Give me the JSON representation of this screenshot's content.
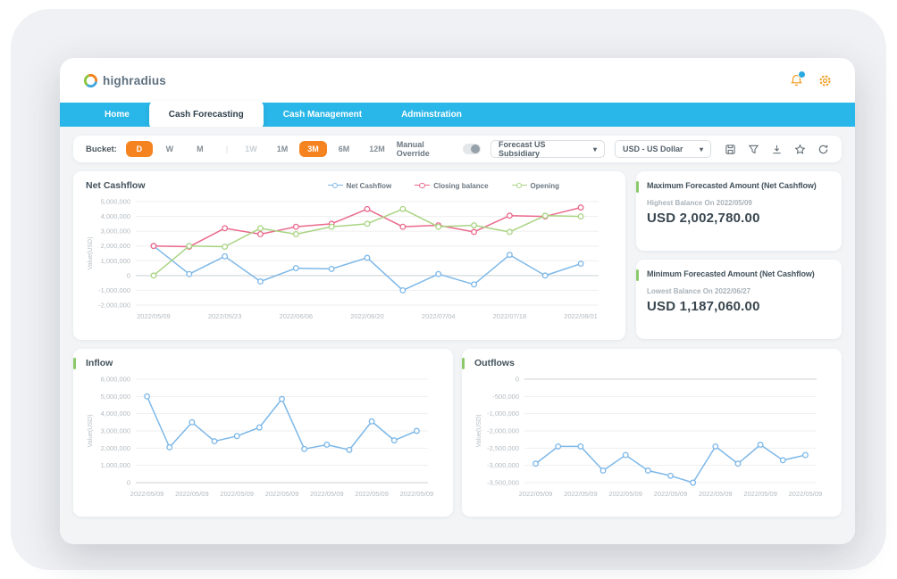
{
  "brand": {
    "name": "highradius"
  },
  "header": {
    "icons": [
      {
        "name": "notifications-bell"
      },
      {
        "name": "settings-gear"
      }
    ]
  },
  "nav": {
    "tabs": [
      {
        "label": "Home",
        "active": false
      },
      {
        "label": "Cash Forecasting",
        "active": true
      },
      {
        "label": "Cash Management",
        "active": false
      },
      {
        "label": "Adminstration",
        "active": false
      }
    ]
  },
  "toolbar": {
    "bucket_label": "Bucket:",
    "bucket_buttons": [
      {
        "label": "D",
        "state": "active"
      },
      {
        "label": "W",
        "state": "normal"
      },
      {
        "label": "M",
        "state": "normal"
      },
      {
        "label": "|",
        "state": "divider"
      },
      {
        "label": "1W",
        "state": "disabled"
      },
      {
        "label": "1M",
        "state": "normal"
      },
      {
        "label": "3M",
        "state": "active"
      },
      {
        "label": "6M",
        "state": "normal"
      },
      {
        "label": "12M",
        "state": "normal"
      }
    ],
    "manual_override_label": "Manual Override",
    "manual_override_on": false,
    "forecast_dropdown": "Forecast US Subsidiary",
    "currency_dropdown": "USD - US Dollar",
    "action_icons": [
      "save",
      "filter",
      "download",
      "favorite",
      "refresh"
    ]
  },
  "panels": {
    "max": {
      "title": "Maximum Forecasted Amount (Net Cashflow)",
      "subtitle": "Highest Balance On 2022/05/09",
      "value": "USD 2,002,780.00"
    },
    "min": {
      "title": "Minimum Forecasted Amount (Net Cashflow)",
      "subtitle": "Lowest Balance On 2022/06/27",
      "value": "USD 1,187,060.00"
    }
  },
  "colors": {
    "nav_blue": "#29b6e8",
    "accent_orange": "#f5831f",
    "accent_green": "#8bc96a",
    "line_blue": "#7db8e8",
    "line_pink": "#ea6a8c",
    "line_green": "#a9d483"
  },
  "chart_data": [
    {
      "id": "net_cashflow",
      "type": "line",
      "title": "Net Cashflow",
      "ylabel": "Value(USD)",
      "grid": true,
      "legend_position": "top",
      "yticks": [
        "5,000,000",
        "4,000,000",
        "3,000,000",
        "2,000,000",
        "1,000,000",
        "0",
        "-1,000,000",
        "-2,000,000"
      ],
      "ytick_values": [
        5000000,
        4000000,
        3000000,
        2000000,
        1000000,
        0,
        -1000000,
        -2000000
      ],
      "xlabels": [
        "2022/05/09",
        "2022/05/23",
        "2022/06/06",
        "2022/06/20",
        "2022/07/04",
        "2022/07/18",
        "2022/08/01"
      ],
      "series": [
        {
          "name": "Net Cashflow",
          "color": "#7db8e8",
          "values": [
            2000000,
            100000,
            1300000,
            -400000,
            500000,
            450000,
            1200000,
            -1000000,
            100000,
            -600000,
            1400000,
            0,
            800000
          ]
        },
        {
          "name": "Closing balance",
          "color": "#ea6a8c",
          "values": [
            2000000,
            1950000,
            3200000,
            2800000,
            3300000,
            3500000,
            4500000,
            3300000,
            3400000,
            2950000,
            4050000,
            4000000,
            4600000
          ]
        },
        {
          "name": "Opening",
          "color": "#a9d483",
          "values": [
            0,
            2000000,
            1950000,
            3200000,
            2800000,
            3300000,
            3500000,
            4500000,
            3300000,
            3400000,
            2950000,
            4050000,
            4000000
          ]
        }
      ]
    },
    {
      "id": "inflow",
      "type": "line",
      "title": "Inflow",
      "ylabel": "Value(USD)",
      "grid": true,
      "yticks": [
        "6,000,000",
        "5,000,000",
        "4,000,000",
        "3,000,000",
        "2,000,000",
        "1,000,000",
        "0"
      ],
      "ytick_values": [
        6000000,
        5000000,
        4000000,
        3000000,
        2000000,
        1000000,
        0
      ],
      "xlabels": [
        "2022/05/09",
        "2022/05/09",
        "2022/05/09",
        "2022/05/09",
        "2022/05/09",
        "2022/05/09",
        "2022/05/09"
      ],
      "series": [
        {
          "name": "Inflow",
          "color": "#7db8e8",
          "values": [
            5000000,
            2050000,
            3500000,
            2400000,
            2700000,
            3200000,
            4850000,
            1950000,
            2200000,
            1900000,
            3550000,
            2450000,
            3000000
          ]
        }
      ]
    },
    {
      "id": "outflows",
      "type": "line",
      "title": "Outflows",
      "ylabel": "Value(USD)",
      "grid": true,
      "yticks": [
        "0",
        "-500,000",
        "-1,000,000",
        "-2,000,000",
        "-2,500,000",
        "-3,000,000",
        "-3,500,000"
      ],
      "ytick_values": [
        0,
        -500000,
        -1000000,
        -2000000,
        -2500000,
        -3000000,
        -3500000
      ],
      "xlabels": [
        "2022/05/09",
        "2022/05/09",
        "2022/05/09",
        "2022/05/09",
        "2022/05/09",
        "2022/05/09",
        "2022/05/09"
      ],
      "series": [
        {
          "name": "Outflows",
          "color": "#7db8e8",
          "values": [
            -2950000,
            -2450000,
            -2450000,
            -3150000,
            -2700000,
            -3150000,
            -3300000,
            -3500000,
            -2450000,
            -2950000,
            -2400000,
            -2850000,
            -2700000
          ]
        }
      ]
    }
  ]
}
